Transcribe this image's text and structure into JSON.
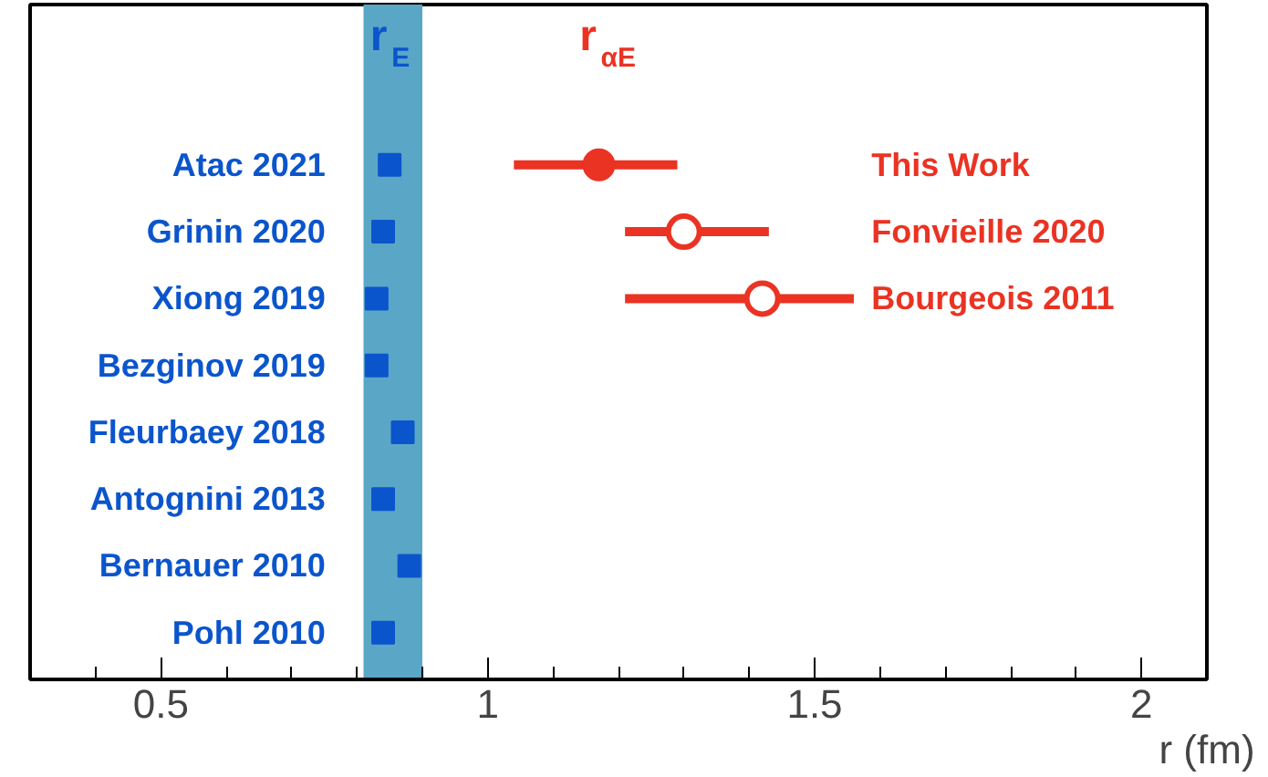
{
  "chart_data": {
    "type": "scatter",
    "orientation": "horizontal",
    "categories": [
      "Atac 2021",
      "Grinin 2020",
      "Xiong 2019",
      "Bezginov 2019",
      "Fleurbaey 2018",
      "Antognini 2013",
      "Bernauer 2010",
      "Pohl 2010"
    ],
    "series": [
      {
        "name": "r$_{E}$",
        "color": "#0b55cc",
        "marker": "square",
        "values": [
          0.85,
          0.84,
          0.83,
          0.83,
          0.87,
          0.84,
          0.88,
          0.84
        ]
      },
      {
        "name": "r$_{αE}$",
        "color": "#ea3323",
        "marker": "circle",
        "values": [
          1.17,
          null,
          null,
          null,
          null,
          null,
          null,
          null
        ],
        "errors": [
          [
            1.04,
            1.29
          ],
          null,
          null,
          null,
          null,
          null,
          null,
          null
        ]
      },
      {
        "color": "#ea3323",
        "marker": "circle",
        "values": [
          null,
          1.3,
          1.42,
          null,
          null,
          null,
          null,
          null
        ],
        "errors": [
          null,
          [
            1.21,
            1.43
          ],
          [
            1.21,
            1.56
          ],
          null,
          null,
          null,
          null,
          null
        ]
      }
    ],
    "bands": [
      {
        "axis": "x",
        "from": 0.81,
        "to": 0.9,
        "color": "#5aa6c6"
      }
    ],
    "annotations": [
      "This Work",
      "Fonvieille 2020",
      "Bourgeois 2011"
    ],
    "xlabel": "r (fm)",
    "xlim": [
      0.3,
      2.1
    ],
    "xticks": [
      {
        "value": 0.4,
        "label": null
      },
      0.5,
      {
        "value": 0.6,
        "label": null
      },
      {
        "value": 0.7,
        "label": null
      },
      {
        "value": 0.8,
        "label": null
      },
      {
        "value": 0.9,
        "label": null
      },
      1,
      {
        "value": 1.1,
        "label": null
      },
      {
        "value": 1.2,
        "label": null
      },
      {
        "value": 1.3,
        "label": null
      },
      {
        "value": 1.4,
        "label": null
      },
      1.5,
      {
        "value": 1.6,
        "label": null
      },
      {
        "value": 1.7,
        "label": null
      },
      {
        "value": 1.8,
        "label": null
      },
      {
        "value": 1.9,
        "label": null
      },
      2
    ],
    "tick_labels": "x",
    "grid": false,
    "legend": false
  }
}
